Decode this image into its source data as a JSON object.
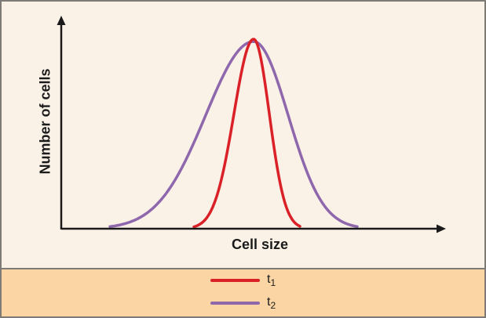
{
  "figure": {
    "background": "#fbf2e7",
    "legend_background": "#fbd5a3",
    "border_color": "#7e7a75",
    "text_color": "#1a1a1a"
  },
  "chart_data": {
    "type": "line",
    "title": "",
    "xlabel": "Cell size",
    "ylabel": "Number of cells",
    "axis_color": "#1a1a1a",
    "grid": false,
    "ticks": "none",
    "description": "Two overlapping bell-shaped cell-size distributions peaking at the same cell size; t1 (red) is a narrow distribution, t2 (purple) is a wide distribution.",
    "legend_position": "bottom-band",
    "series": [
      {
        "name": "t1",
        "color": "#da2128",
        "shape": "narrow-bell",
        "x_start": 245,
        "x_end": 380,
        "peak_x": 321,
        "peak_y": 48,
        "baseline_y": 290,
        "sigma_left": 25,
        "sigma_right": 20,
        "stroke_width": 3.5
      },
      {
        "name": "t2",
        "color": "#8f67ad",
        "shape": "wide-bell",
        "x_start": 138,
        "x_end": 453,
        "peak_x": 321,
        "peak_y": 51,
        "baseline_y": 290,
        "sigma_left": 61,
        "sigma_right": 44,
        "stroke_width": 3.5
      }
    ]
  },
  "legend": {
    "items": [
      {
        "base": "t",
        "sub": "1",
        "color": "#da2128"
      },
      {
        "base": "t",
        "sub": "2",
        "color": "#8f67ad"
      }
    ]
  }
}
